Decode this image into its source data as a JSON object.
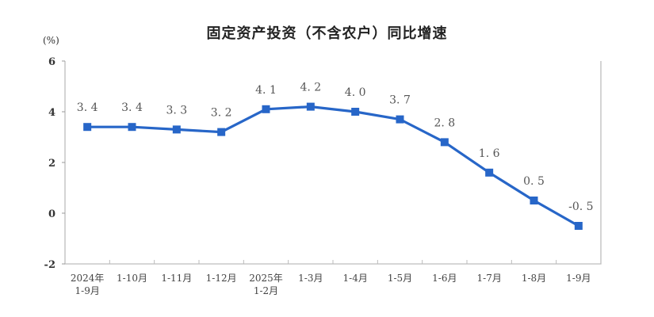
{
  "chart_data": {
    "type": "line",
    "title": "固定资产投资（不含农户）同比增速",
    "ylabel": "(%)",
    "xlabel": "",
    "ylim": [
      -2,
      6
    ],
    "yticks": [
      6,
      4,
      2,
      0,
      -2
    ],
    "grid": false,
    "legend": null,
    "categories": [
      [
        "2024年",
        "1-9月"
      ],
      [
        "1-10月"
      ],
      [
        "1-11月"
      ],
      [
        "1-12月"
      ],
      [
        "2025年",
        "1-2月"
      ],
      [
        "1-3月"
      ],
      [
        "1-4月"
      ],
      [
        "1-5月"
      ],
      [
        "1-6月"
      ],
      [
        "1-7月"
      ],
      [
        "1-8月"
      ],
      [
        "1-9月"
      ]
    ],
    "series": [
      {
        "name": "固定资产投资（不含农户）同比增速",
        "values": [
          3.4,
          3.4,
          3.3,
          3.2,
          4.1,
          4.2,
          4.0,
          3.7,
          2.8,
          1.6,
          0.5,
          -0.5
        ],
        "labels": [
          "3.4",
          "3.4",
          "3.3",
          "3.2",
          "4.1",
          "4.2",
          "4.0",
          "3.7",
          "2.8",
          "1.6",
          "0.5",
          "-0.5"
        ],
        "color": "#2766c8"
      }
    ]
  }
}
